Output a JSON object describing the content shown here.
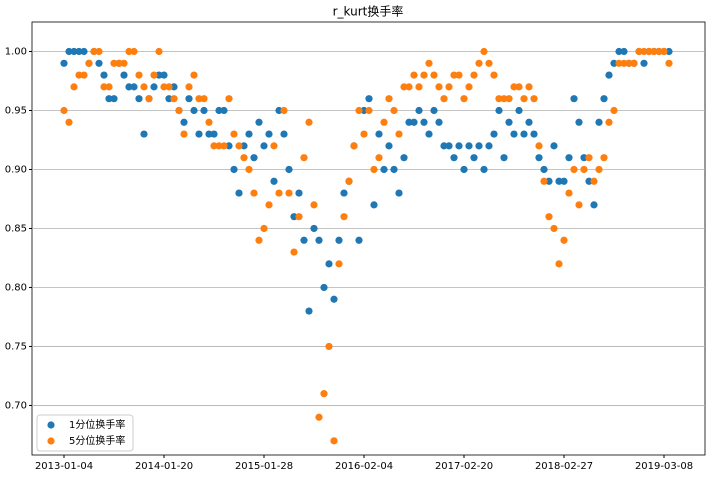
{
  "chart_data": {
    "type": "scatter",
    "title": "r_kurt换手率",
    "categories": [
      "2013-01-04",
      null,
      null,
      null,
      null,
      null,
      null,
      null,
      null,
      null,
      null,
      null,
      null,
      null,
      null,
      null,
      null,
      null,
      null,
      null,
      "2014-01-20",
      null,
      null,
      null,
      null,
      null,
      null,
      null,
      null,
      null,
      null,
      null,
      null,
      null,
      null,
      null,
      null,
      null,
      null,
      null,
      "2015-01-28",
      null,
      null,
      null,
      null,
      null,
      null,
      null,
      null,
      null,
      null,
      null,
      null,
      null,
      null,
      null,
      null,
      null,
      null,
      null,
      "2016-02-04",
      null,
      null,
      null,
      null,
      null,
      null,
      null,
      null,
      null,
      null,
      null,
      null,
      null,
      null,
      null,
      null,
      null,
      null,
      null,
      "2017-02-20",
      null,
      null,
      null,
      null,
      null,
      null,
      null,
      null,
      null,
      null,
      null,
      null,
      null,
      null,
      null,
      null,
      null,
      null,
      null,
      "2018-02-27",
      null,
      null,
      null,
      null,
      null,
      null,
      null,
      null,
      null,
      null,
      null,
      null,
      null,
      null,
      null,
      null,
      null,
      null,
      null,
      "2019-03-08",
      null
    ],
    "series": [
      {
        "name": "1分位换手率",
        "color": "#1f77b4",
        "values": [
          0.99,
          1.0,
          1.0,
          1.0,
          1.0,
          0.99,
          1.0,
          0.99,
          0.98,
          0.96,
          0.96,
          0.99,
          0.98,
          0.97,
          0.97,
          0.96,
          0.93,
          0.96,
          0.97,
          0.98,
          0.98,
          0.96,
          0.97,
          0.95,
          0.94,
          0.96,
          0.95,
          0.93,
          0.95,
          0.93,
          0.93,
          0.95,
          0.95,
          0.92,
          0.9,
          0.88,
          0.92,
          0.93,
          0.91,
          0.94,
          0.92,
          0.93,
          0.89,
          0.95,
          0.93,
          0.9,
          0.86,
          0.88,
          0.84,
          0.78,
          0.85,
          0.84,
          0.8,
          0.82,
          0.79,
          0.84,
          0.88,
          0.89,
          0.92,
          0.84,
          0.95,
          0.96,
          0.87,
          0.93,
          0.9,
          0.92,
          0.9,
          0.88,
          0.91,
          0.94,
          0.94,
          0.95,
          0.94,
          0.93,
          0.95,
          0.94,
          0.92,
          0.92,
          0.91,
          0.92,
          0.9,
          0.92,
          0.91,
          0.92,
          0.9,
          0.92,
          0.93,
          0.95,
          0.91,
          0.94,
          0.93,
          0.95,
          0.93,
          0.94,
          0.93,
          0.91,
          0.9,
          0.89,
          0.92,
          0.89,
          0.89,
          0.91,
          0.96,
          0.94,
          0.91,
          0.89,
          0.87,
          0.94,
          0.96,
          0.98,
          0.99,
          1.0,
          1.0,
          0.99,
          0.99,
          1.0,
          0.99,
          1.0,
          1.0,
          1.0,
          1.0,
          1.0
        ]
      },
      {
        "name": "5分位换手率",
        "color": "#ff7f0e",
        "values": [
          0.95,
          0.94,
          0.97,
          0.98,
          0.98,
          0.99,
          1.0,
          1.0,
          0.97,
          0.97,
          0.99,
          0.99,
          0.99,
          1.0,
          1.0,
          0.98,
          0.97,
          0.96,
          0.98,
          1.0,
          0.97,
          0.97,
          0.96,
          0.95,
          0.93,
          0.97,
          0.98,
          0.96,
          0.96,
          0.94,
          0.92,
          0.92,
          0.92,
          0.96,
          0.93,
          0.92,
          0.91,
          0.9,
          0.88,
          0.84,
          0.85,
          0.87,
          0.92,
          0.88,
          0.95,
          0.88,
          0.83,
          0.86,
          0.91,
          0.94,
          0.87,
          0.69,
          0.71,
          0.75,
          0.67,
          0.82,
          0.86,
          0.89,
          0.92,
          0.95,
          0.93,
          0.95,
          0.9,
          0.91,
          0.94,
          0.96,
          0.95,
          0.93,
          0.97,
          0.97,
          0.98,
          0.97,
          0.98,
          0.99,
          0.98,
          0.97,
          0.96,
          0.97,
          0.98,
          0.98,
          0.96,
          0.97,
          0.98,
          0.99,
          1.0,
          0.99,
          0.98,
          0.96,
          0.96,
          0.96,
          0.97,
          0.97,
          0.96,
          0.97,
          0.96,
          0.92,
          0.89,
          0.86,
          0.85,
          0.82,
          0.84,
          0.88,
          0.9,
          0.87,
          0.9,
          0.91,
          0.89,
          0.9,
          0.91,
          0.94,
          0.95,
          0.99,
          0.99,
          0.99,
          0.99,
          1.0,
          1.0,
          1.0,
          1.0,
          1.0,
          1.0,
          0.99
        ]
      }
    ],
    "ylim": [
      0.658,
      1.025
    ],
    "yticks": [
      {
        "value": 0.7,
        "label": "0.70"
      },
      {
        "value": 0.75,
        "label": "0.75"
      },
      {
        "value": 0.8,
        "label": "0.80"
      },
      {
        "value": 0.85,
        "label": "0.85"
      },
      {
        "value": 0.9,
        "label": "0.90"
      },
      {
        "value": 0.95,
        "label": "0.95"
      },
      {
        "value": 1.0,
        "label": "1.00"
      }
    ],
    "grid": true,
    "legend": "lower left"
  }
}
